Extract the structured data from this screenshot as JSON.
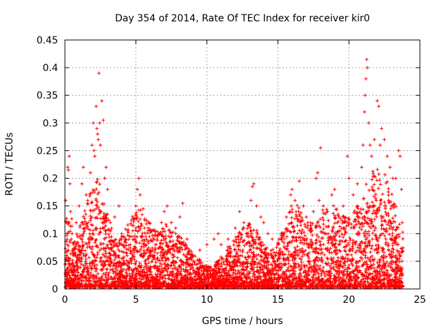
{
  "chart_data": {
    "type": "scatter",
    "title": "Day 354 of 2014, Rate Of TEC Index for receiver kir0",
    "xlabel": "GPS time / hours",
    "ylabel": "ROTI / TECUs",
    "xlim": [
      0,
      25
    ],
    "ylim": [
      0,
      0.45
    ],
    "xticks": [
      0,
      5,
      10,
      15,
      20,
      25
    ],
    "yticks": [
      0,
      0.05,
      0.1,
      0.15,
      0.2,
      0.25,
      0.3,
      0.35,
      0.4,
      0.45
    ],
    "grid": true,
    "marker": "+",
    "color": "#ff0000",
    "series": [
      {
        "name": "ROTI",
        "points": [
          [
            0.05,
            0.16
          ],
          [
            0.1,
            0.12
          ],
          [
            0.15,
            0.08
          ],
          [
            0.2,
            0.22
          ],
          [
            0.25,
            0.215
          ],
          [
            0.3,
            0.24
          ],
          [
            0.35,
            0.19
          ],
          [
            0.4,
            0.14
          ],
          [
            0.5,
            0.1
          ],
          [
            0.6,
            0.06
          ],
          [
            0.8,
            0.12
          ],
          [
            1.0,
            0.15
          ],
          [
            1.2,
            0.19
          ],
          [
            1.3,
            0.22
          ],
          [
            1.5,
            0.17
          ],
          [
            1.6,
            0.16
          ],
          [
            1.8,
            0.21
          ],
          [
            1.9,
            0.26
          ],
          [
            2.0,
            0.3
          ],
          [
            2.05,
            0.25
          ],
          [
            2.1,
            0.24
          ],
          [
            2.2,
            0.33
          ],
          [
            2.25,
            0.29
          ],
          [
            2.3,
            0.28
          ],
          [
            2.35,
            0.27
          ],
          [
            2.4,
            0.39
          ],
          [
            2.45,
            0.3
          ],
          [
            2.5,
            0.26
          ],
          [
            2.6,
            0.34
          ],
          [
            2.7,
            0.305
          ],
          [
            2.8,
            0.2
          ],
          [
            2.9,
            0.22
          ],
          [
            3.0,
            0.18
          ],
          [
            3.2,
            0.12
          ],
          [
            3.5,
            0.13
          ],
          [
            3.8,
            0.15
          ],
          [
            4.0,
            0.1
          ],
          [
            4.3,
            0.09
          ],
          [
            4.6,
            0.08
          ],
          [
            4.8,
            0.07
          ],
          [
            5.0,
            0.15
          ],
          [
            5.1,
            0.18
          ],
          [
            5.2,
            0.2
          ],
          [
            5.3,
            0.17
          ],
          [
            5.5,
            0.145
          ],
          [
            5.6,
            0.11
          ],
          [
            6.0,
            0.07
          ],
          [
            6.5,
            0.09
          ],
          [
            6.8,
            0.12
          ],
          [
            7.0,
            0.14
          ],
          [
            7.2,
            0.15
          ],
          [
            7.5,
            0.12
          ],
          [
            7.8,
            0.11
          ],
          [
            8.1,
            0.13
          ],
          [
            8.3,
            0.155
          ],
          [
            8.6,
            0.09
          ],
          [
            9.0,
            0.06
          ],
          [
            9.5,
            0.07
          ],
          [
            10.0,
            0.08
          ],
          [
            10.5,
            0.09
          ],
          [
            10.8,
            0.1
          ],
          [
            11.0,
            0.08
          ],
          [
            11.5,
            0.09
          ],
          [
            12.0,
            0.11
          ],
          [
            12.3,
            0.14
          ],
          [
            12.6,
            0.12
          ],
          [
            12.9,
            0.1
          ],
          [
            13.1,
            0.16
          ],
          [
            13.2,
            0.185
          ],
          [
            13.3,
            0.19
          ],
          [
            13.5,
            0.15
          ],
          [
            13.8,
            0.13
          ],
          [
            14.0,
            0.12
          ],
          [
            14.3,
            0.1
          ],
          [
            14.6,
            0.09
          ],
          [
            15.0,
            0.08
          ],
          [
            15.3,
            0.1
          ],
          [
            15.6,
            0.13
          ],
          [
            15.9,
            0.17
          ],
          [
            16.0,
            0.18
          ],
          [
            16.2,
            0.16
          ],
          [
            16.5,
            0.195
          ],
          [
            16.8,
            0.15
          ],
          [
            17.0,
            0.13
          ],
          [
            17.3,
            0.12
          ],
          [
            17.5,
            0.14
          ],
          [
            17.7,
            0.2
          ],
          [
            17.8,
            0.21
          ],
          [
            17.9,
            0.16
          ],
          [
            18.0,
            0.255
          ],
          [
            18.2,
            0.15
          ],
          [
            18.5,
            0.14
          ],
          [
            18.8,
            0.17
          ],
          [
            19.0,
            0.18
          ],
          [
            19.3,
            0.13
          ],
          [
            19.6,
            0.15
          ],
          [
            19.9,
            0.24
          ],
          [
            20.0,
            0.2
          ],
          [
            20.3,
            0.17
          ],
          [
            20.6,
            0.19
          ],
          [
            20.9,
            0.22
          ],
          [
            21.0,
            0.26
          ],
          [
            21.1,
            0.32
          ],
          [
            21.15,
            0.35
          ],
          [
            21.2,
            0.38
          ],
          [
            21.25,
            0.415
          ],
          [
            21.3,
            0.4
          ],
          [
            21.4,
            0.3
          ],
          [
            21.5,
            0.26
          ],
          [
            21.6,
            0.24
          ],
          [
            21.8,
            0.27
          ],
          [
            22.0,
            0.34
          ],
          [
            22.1,
            0.33
          ],
          [
            22.2,
            0.26
          ],
          [
            22.3,
            0.29
          ],
          [
            22.5,
            0.27
          ],
          [
            22.7,
            0.24
          ],
          [
            22.9,
            0.22
          ],
          [
            23.1,
            0.2
          ],
          [
            23.3,
            0.2
          ],
          [
            23.5,
            0.25
          ],
          [
            23.6,
            0.24
          ],
          [
            23.7,
            0.18
          ],
          [
            23.75,
            0.12
          ]
        ]
      }
    ]
  }
}
